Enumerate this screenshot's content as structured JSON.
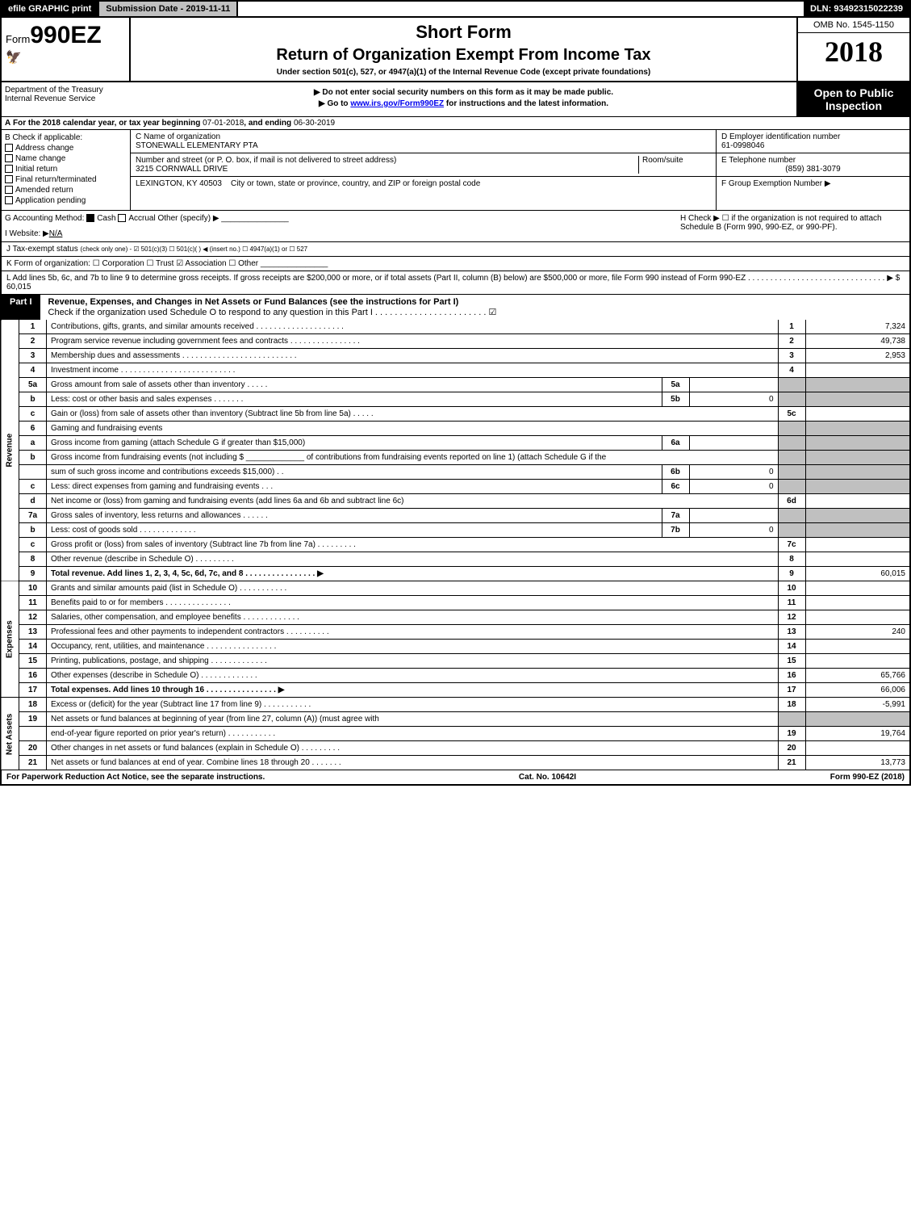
{
  "topbar": {
    "efile": "efile GRAPHIC print",
    "submission": "Submission Date - 2019-11-11",
    "dln": "DLN: 93492315022239"
  },
  "header": {
    "form_prefix": "Form",
    "form_no": "990EZ",
    "short_form": "Short Form",
    "title": "Return of Organization Exempt From Income Tax",
    "subtitle": "Under section 501(c), 527, or 4947(a)(1) of the Internal Revenue Code (except private foundations)",
    "line1": "▶ Do not enter social security numbers on this form as it may be made public.",
    "line2_prefix": "▶ Go to ",
    "line2_link": "www.irs.gov/Form990EZ",
    "line2_suffix": " for instructions and the latest information.",
    "omb": "OMB No. 1545-1150",
    "year": "2018",
    "open_public": "Open to Public Inspection",
    "dept1": "Department of the Treasury",
    "dept2": "Internal Revenue Service"
  },
  "line_a": {
    "label": "A",
    "text_prefix": "For the 2018 calendar year, or tax year beginning ",
    "begin": "07-01-2018",
    "text_mid": ", and ending ",
    "end": "06-30-2019"
  },
  "section_b": {
    "label": "B",
    "heading": "Check if applicable:",
    "items": [
      "Address change",
      "Name change",
      "Initial return",
      "Final return/terminated",
      "Amended return",
      "Application pending"
    ]
  },
  "section_c": {
    "name_label": "C Name of organization",
    "name": "STONEWALL ELEMENTARY PTA",
    "addr_label": "Number and street (or P. O. box, if mail is not delivered to street address)",
    "room_label": "Room/suite",
    "addr": "3215 CORNWALL DRIVE",
    "city_label": "City or town, state or province, country, and ZIP or foreign postal code",
    "city": "LEXINGTON, KY  40503"
  },
  "section_d": {
    "ein_label": "D Employer identification number",
    "ein": "61-0998046",
    "phone_label": "E Telephone number",
    "phone": "(859) 381-3079",
    "group_label": "F Group Exemption Number  ▶"
  },
  "line_g": {
    "label": "G Accounting Method:",
    "cash": "Cash",
    "accrual": "Accrual",
    "other": "Other (specify) ▶",
    "h_label": "H",
    "h_text": "Check ▶ ☐ if the organization is not required to attach Schedule B (Form 990, 990-EZ, or 990-PF)."
  },
  "line_i": {
    "label": "I Website: ▶",
    "value": "N/A"
  },
  "line_j": {
    "label": "J Tax-exempt status",
    "text": "(check only one) - ☑ 501(c)(3) ☐ 501(c)( ) ◀ (insert no.) ☐ 4947(a)(1) or ☐ 527"
  },
  "line_k": {
    "label": "K Form of organization:",
    "text": "☐ Corporation  ☐ Trust  ☑ Association  ☐ Other"
  },
  "line_l": {
    "label": "L",
    "text": "Add lines 5b, 6c, and 7b to line 9 to determine gross receipts. If gross receipts are $200,000 or more, or if total assets (Part II, column (B) below) are $500,000 or more, file Form 990 instead of Form 990-EZ  . . . . . . . . . . . . . . . . . . . . . . . . . . . . . . . ▶ $ 60,015"
  },
  "part1": {
    "label": "Part I",
    "title": "Revenue, Expenses, and Changes in Net Assets or Fund Balances (see the instructions for Part I)",
    "sub": "Check if the organization used Schedule O to respond to any question in this Part I . . . . . . . . . . . . . . . . . . . . . . . ☑"
  },
  "sections": {
    "revenue": "Revenue",
    "expenses": "Expenses",
    "netassets": "Net Assets"
  },
  "rows": [
    {
      "n": "1",
      "desc": "Contributions, gifts, grants, and similar amounts received  . . . . . . . . . . . . . . . . . . . .",
      "tn": "1",
      "tv": "7,324"
    },
    {
      "n": "2",
      "desc": "Program service revenue including government fees and contracts  . . . . . . . . . . . . . . . .",
      "tn": "2",
      "tv": "49,738"
    },
    {
      "n": "3",
      "desc": "Membership dues and assessments  . . . . . . . . . . . . . . . . . . . . . . . . . .",
      "tn": "3",
      "tv": "2,953"
    },
    {
      "n": "4",
      "desc": "Investment income  . . . . . . . . . . . . . . . . . . . . . . . . . .",
      "tn": "4",
      "tv": ""
    },
    {
      "n": "5a",
      "desc": "Gross amount from sale of assets other than inventory  . . . . .",
      "sn": "5a",
      "sv": ""
    },
    {
      "n": "b",
      "desc": "Less: cost or other basis and sales expenses  . . . . . . .",
      "sn": "5b",
      "sv": "0"
    },
    {
      "n": "c",
      "desc": "Gain or (loss) from sale of assets other than inventory (Subtract line 5b from line 5a)         . . . . .",
      "tn": "5c",
      "tv": ""
    },
    {
      "n": "6",
      "desc": "Gaming and fundraising events"
    },
    {
      "n": "a",
      "desc": "Gross income from gaming (attach Schedule G if greater than $15,000)",
      "sn": "6a",
      "sv": ""
    },
    {
      "n": "b",
      "desc": "Gross income from fundraising events (not including $ _____________ of contributions from fundraising events reported on line 1) (attach Schedule G if the"
    },
    {
      "n": "",
      "desc": "sum of such gross income and contributions exceeds $15,000)        . .",
      "sn": "6b",
      "sv": "0"
    },
    {
      "n": "c",
      "desc": "Less: direct expenses from gaming and fundraising events        . . .",
      "sn": "6c",
      "sv": "0"
    },
    {
      "n": "d",
      "desc": "Net income or (loss) from gaming and fundraising events (add lines 6a and 6b and subtract line 6c)",
      "tn": "6d",
      "tv": ""
    },
    {
      "n": "7a",
      "desc": "Gross sales of inventory, less returns and allowances        . . . . . .",
      "sn": "7a",
      "sv": ""
    },
    {
      "n": "b",
      "desc": "Less: cost of goods sold               . . . . . . . . . . . . .",
      "sn": "7b",
      "sv": "0"
    },
    {
      "n": "c",
      "desc": "Gross profit or (loss) from sales of inventory (Subtract line 7b from line 7a)         . . . . . . . . .",
      "tn": "7c",
      "tv": ""
    },
    {
      "n": "8",
      "desc": "Other revenue (describe in Schedule O)               . . . . . . . . .",
      "tn": "8",
      "tv": ""
    },
    {
      "n": "9",
      "desc": "Total revenue. Add lines 1, 2, 3, 4, 5c, 6d, 7c, and 8       . . . . . . . . . . . . . . . . ▶",
      "tn": "9",
      "tv": "60,015",
      "bold": true
    },
    {
      "n": "10",
      "desc": "Grants and similar amounts paid (list in Schedule O)        . . . . . . . . . . .",
      "tn": "10",
      "tv": ""
    },
    {
      "n": "11",
      "desc": "Benefits paid to or for members         . . . . . . . . . . . . . . .",
      "tn": "11",
      "tv": ""
    },
    {
      "n": "12",
      "desc": "Salaries, other compensation, and employee benefits       . . . . . . . . . . . . .",
      "tn": "12",
      "tv": ""
    },
    {
      "n": "13",
      "desc": "Professional fees and other payments to independent contractors       . . . . . . . . . .",
      "tn": "13",
      "tv": "240"
    },
    {
      "n": "14",
      "desc": "Occupancy, rent, utilities, and maintenance      . . . . . . . . . . . . . . . .",
      "tn": "14",
      "tv": ""
    },
    {
      "n": "15",
      "desc": "Printing, publications, postage, and shipping        . . . . . . . . . . . . .",
      "tn": "15",
      "tv": ""
    },
    {
      "n": "16",
      "desc": "Other expenses (describe in Schedule O)        . . . . . . . . . . . . .",
      "tn": "16",
      "tv": "65,766"
    },
    {
      "n": "17",
      "desc": "Total expenses. Add lines 10 through 16       . . . . . . . . . . . . . . . . ▶",
      "tn": "17",
      "tv": "66,006",
      "bold": true
    },
    {
      "n": "18",
      "desc": "Excess or (deficit) for the year (Subtract line 17 from line 9)        . . . . . . . . . . .",
      "tn": "18",
      "tv": "-5,991"
    },
    {
      "n": "19",
      "desc": "Net assets or fund balances at beginning of year (from line 27, column (A)) (must agree with"
    },
    {
      "n": "",
      "desc": "end-of-year figure reported on prior year's return)        . . . . . . . . . . .",
      "tn": "19",
      "tv": "19,764"
    },
    {
      "n": "20",
      "desc": "Other changes in net assets or fund balances (explain in Schedule O)        . . . . . . . . .",
      "tn": "20",
      "tv": ""
    },
    {
      "n": "21",
      "desc": "Net assets or fund balances at end of year. Combine lines 18 through 20        . . . . . . .",
      "tn": "21",
      "tv": "13,773"
    }
  ],
  "footer": {
    "left": "For Paperwork Reduction Act Notice, see the separate instructions.",
    "mid": "Cat. No. 10642I",
    "right": "Form 990-EZ (2018)"
  }
}
